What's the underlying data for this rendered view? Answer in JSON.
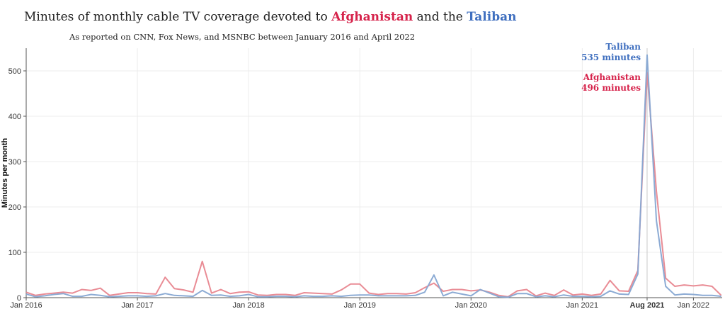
{
  "title": {
    "prefix": "Minutes of monthly cable TV coverage devoted to ",
    "afghanistan": "Afghanistan",
    "middle": " and the ",
    "taliban": "Taliban"
  },
  "subtitle": "As reported on CNN, Fox News, and MSNBC between January 2016 and April 2022",
  "colors": {
    "afghanistan": "#e8868f",
    "taliban": "#86a6d2",
    "afghanistan_text": "#d6234b",
    "taliban_text": "#3f6fbf"
  },
  "chart_data": {
    "type": "line",
    "ylabel": "Minutes per month",
    "xlabel": "",
    "ylim": [
      0,
      550
    ],
    "yticks": [
      0,
      100,
      200,
      300,
      400,
      500
    ],
    "grid": true,
    "xticks": [
      {
        "label": "Jan 2016",
        "month": "2016-01"
      },
      {
        "label": "Jan 2017",
        "month": "2017-01"
      },
      {
        "label": "Jan 2018",
        "month": "2018-01"
      },
      {
        "label": "Jan 2019",
        "month": "2019-01"
      },
      {
        "label": "Jan 2020",
        "month": "2020-01"
      },
      {
        "label": "Jan 2021",
        "month": "2021-01"
      },
      {
        "label": "Aug 2021",
        "month": "2021-08",
        "bold": true
      },
      {
        "label": "Jan 2022",
        "month": "2022-01"
      }
    ],
    "x": [
      "2016-01",
      "2016-02",
      "2016-03",
      "2016-04",
      "2016-05",
      "2016-06",
      "2016-07",
      "2016-08",
      "2016-09",
      "2016-10",
      "2016-11",
      "2016-12",
      "2017-01",
      "2017-02",
      "2017-03",
      "2017-04",
      "2017-05",
      "2017-06",
      "2017-07",
      "2017-08",
      "2017-09",
      "2017-10",
      "2017-11",
      "2017-12",
      "2018-01",
      "2018-02",
      "2018-03",
      "2018-04",
      "2018-05",
      "2018-06",
      "2018-07",
      "2018-08",
      "2018-09",
      "2018-10",
      "2018-11",
      "2018-12",
      "2019-01",
      "2019-02",
      "2019-03",
      "2019-04",
      "2019-05",
      "2019-06",
      "2019-07",
      "2019-08",
      "2019-09",
      "2019-10",
      "2019-11",
      "2019-12",
      "2020-01",
      "2020-02",
      "2020-03",
      "2020-04",
      "2020-05",
      "2020-06",
      "2020-07",
      "2020-08",
      "2020-09",
      "2020-10",
      "2020-11",
      "2020-12",
      "2021-01",
      "2021-02",
      "2021-03",
      "2021-04",
      "2021-05",
      "2021-06",
      "2021-07",
      "2021-08",
      "2021-09",
      "2021-10",
      "2021-11",
      "2021-12",
      "2022-01",
      "2022-02",
      "2022-03",
      "2022-04"
    ],
    "series": [
      {
        "name": "Afghanistan",
        "values": [
          12,
          5,
          8,
          10,
          12,
          10,
          18,
          16,
          21,
          5,
          8,
          11,
          11,
          9,
          8,
          45,
          20,
          17,
          12,
          80,
          10,
          18,
          9,
          12,
          13,
          6,
          5,
          7,
          7,
          5,
          11,
          10,
          9,
          8,
          17,
          30,
          30,
          10,
          7,
          9,
          9,
          8,
          11,
          22,
          32,
          14,
          18,
          18,
          15,
          17,
          12,
          5,
          2,
          15,
          18,
          4,
          10,
          5,
          17,
          6,
          8,
          5,
          8,
          38,
          15,
          14,
          60,
          496,
          235,
          43,
          25,
          28,
          26,
          28,
          25,
          5
        ]
      },
      {
        "name": "Taliban",
        "values": [
          8,
          2,
          4,
          7,
          9,
          3,
          3,
          7,
          5,
          2,
          3,
          4,
          4,
          3,
          4,
          9,
          5,
          4,
          3,
          16,
          5,
          6,
          3,
          4,
          7,
          2,
          2,
          3,
          3,
          2,
          4,
          3,
          3,
          4,
          3,
          5,
          6,
          6,
          4,
          4,
          4,
          4,
          5,
          12,
          50,
          4,
          12,
          8,
          4,
          18,
          10,
          2,
          1,
          9,
          9,
          2,
          4,
          2,
          6,
          3,
          3,
          2,
          3,
          15,
          8,
          7,
          52,
          535,
          170,
          25,
          6,
          8,
          7,
          5,
          5,
          3
        ]
      }
    ],
    "annotations": {
      "taliban_name": "Taliban",
      "taliban_value": "535 minutes",
      "afghanistan_name": "Afghanistan",
      "afghanistan_value": "496 minutes"
    }
  }
}
